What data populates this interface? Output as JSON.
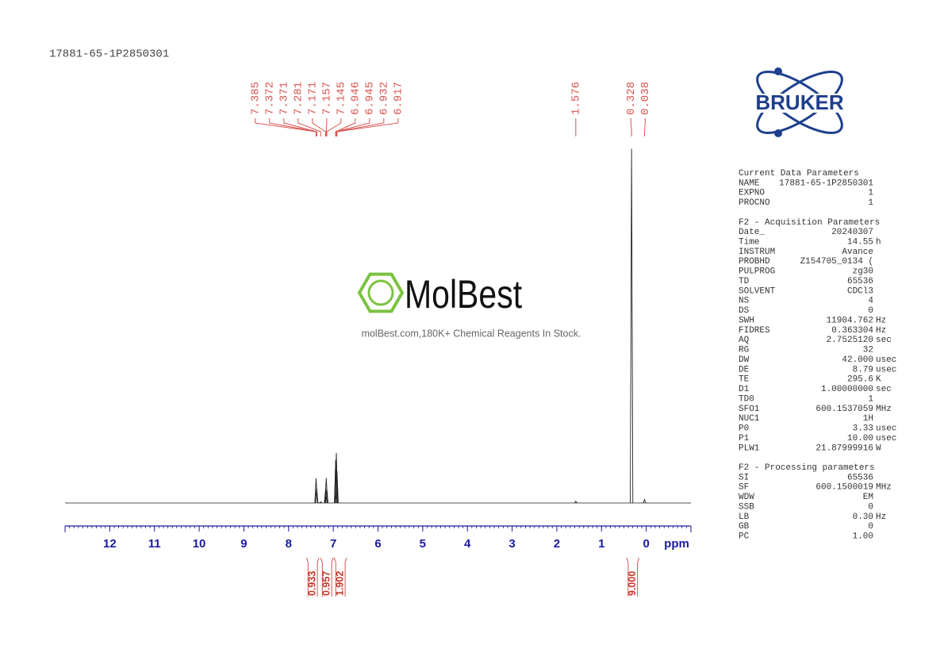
{
  "header": {
    "title": "17881-65-1P2850301"
  },
  "watermark": {
    "brand": "MolBest",
    "tagline": "molBest.com,180K+ Chemical Reagents In Stock."
  },
  "logo": "BRUKER",
  "chart_data": {
    "type": "nmr",
    "x_label": "ppm",
    "xlim": [
      13,
      -1
    ],
    "xticks": [
      12,
      11,
      10,
      9,
      8,
      7,
      6,
      5,
      4,
      3,
      2,
      1,
      0
    ],
    "ylim": [
      0,
      100
    ],
    "color": "#555555",
    "axis_color": "#1a1aa0",
    "label_color": "#d9534f",
    "peaks": {
      "shifts": [
        7.385,
        7.372,
        7.371,
        7.281,
        7.171,
        7.157,
        7.145,
        6.946,
        6.945,
        6.932,
        6.917,
        1.576,
        0.328,
        0.038
      ],
      "heights": [
        6.9,
        4,
        4,
        0.3,
        4,
        7,
        4,
        12,
        12,
        14,
        9,
        0.5,
        99,
        1
      ]
    },
    "integrals": {
      "ranges": [
        [
          7.6,
          7.32
        ],
        [
          7.28,
          7.0
        ],
        [
          6.98,
          6.7
        ],
        [
          0.44,
          0.16
        ]
      ],
      "values": [
        0.933,
        0.957,
        1.902,
        {
          "value": 9,
          "label": "9.000"
        }
      ]
    }
  },
  "parameters": [
    {
      "title": "Current Data Parameters",
      "rows": [
        [
          "NAME",
          "17881-65-1P2850301"
        ],
        [
          "EXPNO",
          "1"
        ],
        [
          "PROCNO",
          "1"
        ]
      ]
    },
    {
      "title": "F2 - Acquisition Parameters",
      "rows": [
        [
          "Date_",
          "20240307"
        ],
        [
          "Time",
          "14.55",
          "h"
        ],
        [
          "INSTRUM",
          "Avance"
        ],
        [
          "PROBHD",
          "Z154705_0134 ("
        ],
        [
          "PULPROG",
          "zg30"
        ],
        [
          "TD",
          "65536"
        ],
        [
          "SOLVENT",
          "CDCl3"
        ],
        [
          "NS",
          "4"
        ],
        [
          "DS",
          "0"
        ],
        [
          "SWH",
          "11904.762",
          "Hz"
        ],
        [
          "FIDRES",
          "0.363304",
          "Hz"
        ],
        [
          "AQ",
          "2.7525120",
          "sec"
        ],
        [
          "RG",
          "32"
        ],
        [
          "DW",
          "42.000",
          "usec"
        ],
        [
          "DE",
          "8.79",
          "usec"
        ],
        [
          "TE",
          "295.6",
          "K"
        ],
        [
          "D1",
          "1.00000000",
          "sec"
        ],
        [
          "TD0",
          "1"
        ],
        [
          "SFO1",
          "600.1537059",
          "MHz"
        ],
        [
          "NUC1",
          "1H"
        ],
        [
          "P0",
          "3.33",
          "usec"
        ],
        [
          "P1",
          "10.00",
          "usec"
        ],
        [
          "PLW1",
          "21.87999916",
          "W"
        ]
      ]
    },
    {
      "title": "F2 - Processing parameters",
      "rows": [
        [
          "SI",
          "65536"
        ],
        [
          "SF",
          "600.1500019",
          "MHz"
        ],
        [
          "WDW",
          "EM"
        ],
        [
          "SSB",
          "0"
        ],
        [
          "LB",
          "0.30",
          "Hz"
        ],
        [
          "GB",
          "0"
        ],
        [
          "PC",
          "1.00"
        ]
      ]
    }
  ]
}
